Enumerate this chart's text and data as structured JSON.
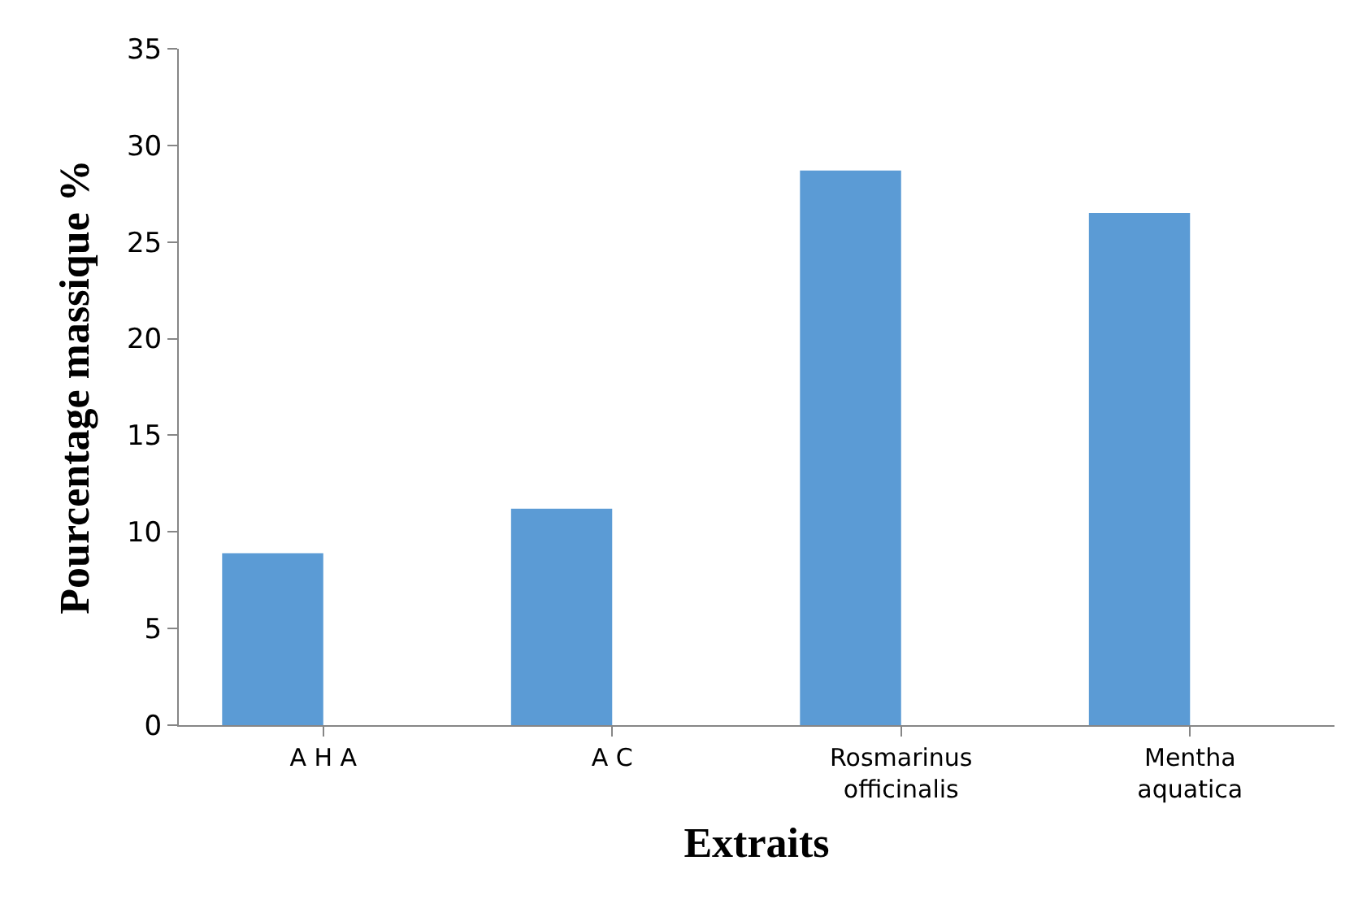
{
  "chart_data": {
    "type": "bar",
    "xlabel": "Extraits",
    "ylabel": "Pourcentage massique %",
    "categories": [
      "A H A",
      "A C",
      "Rosmarinus\nofficinalis",
      "Mentha\naquatica"
    ],
    "values": [
      8.9,
      11.2,
      28.7,
      26.5
    ],
    "color": "#5b9bd5",
    "ylim": [
      0,
      35
    ],
    "yticks": [
      0,
      5,
      10,
      15,
      20,
      25,
      30,
      35
    ]
  }
}
